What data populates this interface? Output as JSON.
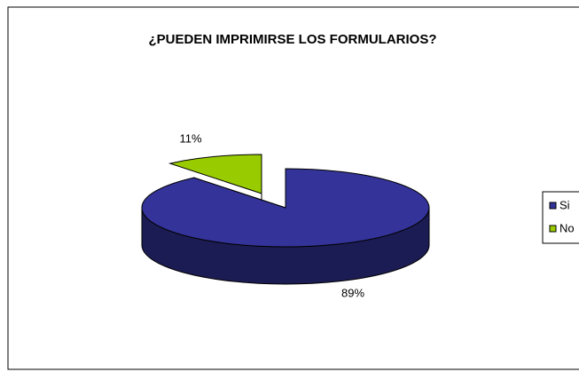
{
  "chart_data": {
    "type": "pie",
    "title": "¿PUEDEN IMPRIMIRSE LOS FORMULARIOS?",
    "categories": [
      "Si",
      "No"
    ],
    "values": [
      89,
      11
    ],
    "value_labels": [
      "89%",
      "11%"
    ],
    "colors": [
      "#333399",
      "#99cc00"
    ],
    "legend": "right"
  }
}
